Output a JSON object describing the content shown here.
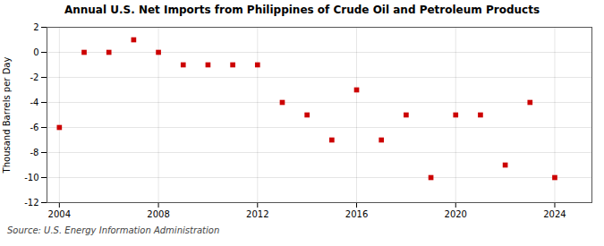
{
  "chart_data": {
    "type": "scatter",
    "title": "Annual U.S. Net Imports from Philippines of Crude Oil and Petroleum Products",
    "ylabel": "Thousand Barrels per Day",
    "source": "Source: U.S. Energy Information Administration",
    "x": [
      2004,
      2005,
      2006,
      2007,
      2008,
      2009,
      2010,
      2011,
      2012,
      2013,
      2014,
      2015,
      2016,
      2017,
      2018,
      2019,
      2020,
      2021,
      2022,
      2023,
      2024
    ],
    "values": [
      -6,
      0,
      0,
      1,
      0,
      -1,
      -1,
      -1,
      -1,
      -4,
      -5,
      -7,
      -3,
      -7,
      -5,
      -10,
      -5,
      -5,
      -9,
      -4,
      -10
    ],
    "color": "#cc0000",
    "marker": "square",
    "xlim": [
      2003.5,
      2025.5
    ],
    "ylim": [
      -12,
      2
    ],
    "xticks": [
      2004,
      2008,
      2012,
      2016,
      2020,
      2024
    ],
    "yticks": [
      2,
      0,
      -2,
      -4,
      -6,
      -8,
      -10,
      -12
    ],
    "grid": true
  }
}
